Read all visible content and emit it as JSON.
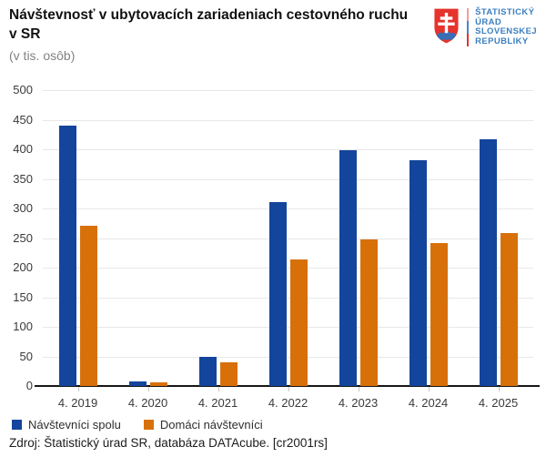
{
  "header": {
    "title": "Návštevnosť v ubytovacích zariadeniach cestovného ruchu v SR",
    "subtitle": "(v tis. osôb)",
    "logo": {
      "lines": [
        "ŠTATISTICKÝ",
        "ÚRAD",
        "SLOVENSKEJ",
        "REPUBLIKY"
      ],
      "text_color": "#3c7fc0",
      "shield_red": "#e5332d",
      "shield_blue": "#3a6db4"
    }
  },
  "chart_data": {
    "type": "bar",
    "title": "Návštevnosť v ubytovacích zariadeniach cestovného ruchu v SR",
    "unit_label": "(v tis. osôb)",
    "categories": [
      "4. 2019",
      "4. 2020",
      "4. 2021",
      "4. 2022",
      "4. 2023",
      "4. 2024",
      "4. 2025"
    ],
    "series": [
      {
        "name": "Návštevníci spolu",
        "color": "#14459c",
        "values": [
          440,
          8,
          49,
          311,
          399,
          382,
          417
        ]
      },
      {
        "name": "Domáci návštevníci",
        "color": "#d8700a",
        "values": [
          271,
          6,
          40,
          214,
          247,
          242,
          259
        ]
      }
    ],
    "ylim": [
      0,
      500
    ],
    "ytick_step": 50,
    "grid": true,
    "legend_position": "bottom"
  },
  "footer": {
    "source": "Zdroj: Štatistický úrad SR, databáza DATAcube. [cr2001rs]"
  }
}
